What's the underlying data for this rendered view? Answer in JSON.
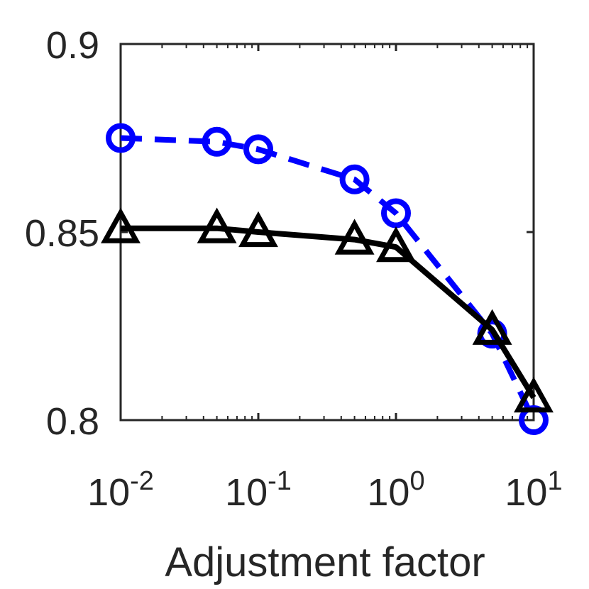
{
  "chart_data": {
    "type": "line",
    "title": "",
    "xlabel": "Adjustment factor",
    "ylabel": "",
    "x_scale": "log",
    "xlim": [
      0.01,
      10
    ],
    "ylim": [
      0.8,
      0.9
    ],
    "x_ticks": [
      {
        "value": 0.01,
        "base": "10",
        "exp": "-2"
      },
      {
        "value": 0.1,
        "base": "10",
        "exp": "-1"
      },
      {
        "value": 1,
        "base": "10",
        "exp": "0"
      },
      {
        "value": 10,
        "base": "10",
        "exp": "1"
      }
    ],
    "y_ticks": [
      {
        "value": 0.8,
        "label": "0.8"
      },
      {
        "value": 0.85,
        "label": "0.85"
      },
      {
        "value": 0.9,
        "label": "0.9"
      }
    ],
    "grid": false,
    "x": [
      0.01,
      0.05,
      0.1,
      0.5,
      1,
      5,
      10
    ],
    "series": [
      {
        "values": [
          0.875,
          0.874,
          0.872,
          0.864,
          0.855,
          0.823,
          0.8
        ],
        "color": "#0000ff",
        "line_style": "dashed",
        "marker": "circle"
      },
      {
        "values": [
          0.851,
          0.851,
          0.85,
          0.848,
          0.846,
          0.824,
          0.806
        ],
        "color": "#000000",
        "line_style": "solid",
        "marker": "triangle"
      }
    ]
  }
}
